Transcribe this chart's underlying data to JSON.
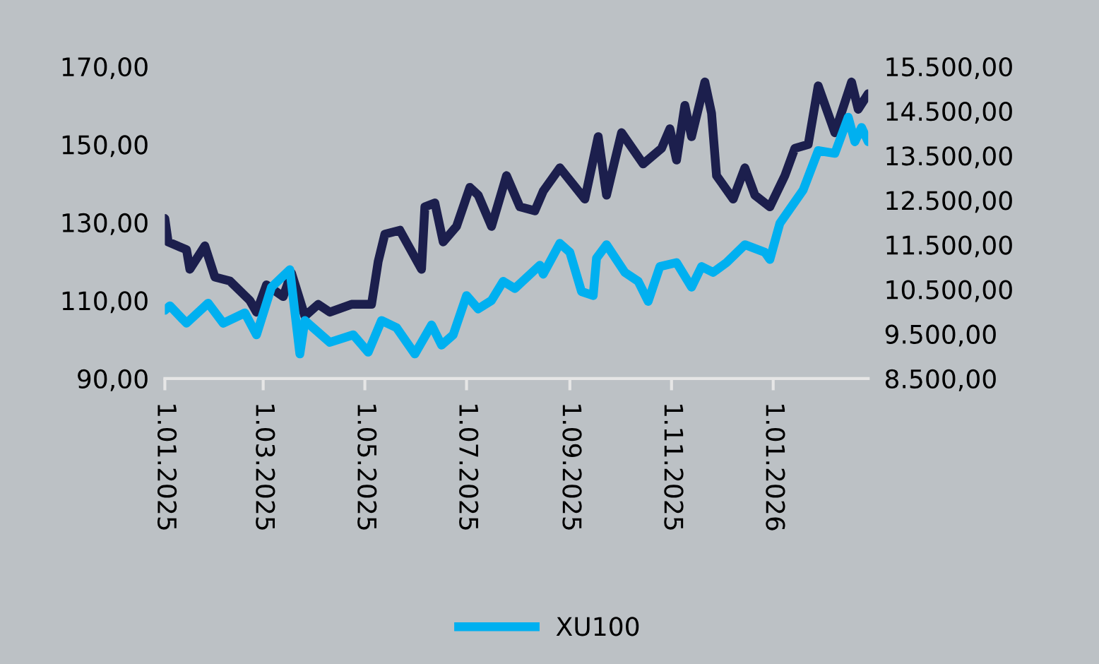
{
  "chart_data": {
    "type": "line",
    "legend": "bottom",
    "grid": false,
    "line_style": "solid",
    "marker": "none",
    "xlim": [
      "2025-01-01",
      "2026-02-27"
    ],
    "xticks": [
      {
        "value": "2025-01-01",
        "label": "1.01.2025"
      },
      {
        "value": "2025-03-01",
        "label": "1.03.2025"
      },
      {
        "value": "2025-05-01",
        "label": "1.05.2025"
      },
      {
        "value": "2025-07-01",
        "label": "1.07.2025"
      },
      {
        "value": "2025-09-01",
        "label": "1.09.2025"
      },
      {
        "value": "2025-11-01",
        "label": "1.11.2025"
      },
      {
        "value": "2026-01-01",
        "label": "1.01.2026"
      }
    ],
    "ylim": [
      90,
      170
    ],
    "yticks": [
      {
        "value": 90,
        "label": "90,00"
      },
      {
        "value": 110,
        "label": "110,00"
      },
      {
        "value": 130,
        "label": "130,00"
      },
      {
        "value": 150,
        "label": "150,00"
      },
      {
        "value": 170,
        "label": "170,00"
      }
    ],
    "y2lim": [
      8500,
      15500
    ],
    "y2ticks": [
      {
        "value": 8500,
        "label": "8.500,00"
      },
      {
        "value": 9500,
        "label": "9.500,00"
      },
      {
        "value": 10500,
        "label": "10.500,00"
      },
      {
        "value": 11500,
        "label": "11.500,00"
      },
      {
        "value": 12500,
        "label": "12.500,00"
      },
      {
        "value": 13500,
        "label": "13.500,00"
      },
      {
        "value": 14500,
        "label": "14.500,00"
      },
      {
        "value": 15500,
        "label": "15.500,00"
      }
    ],
    "series": [
      {
        "color": "#1c1f4d",
        "axis": "y",
        "x": [
          "2025-01-01",
          "2025-01-03",
          "2025-01-14",
          "2025-01-16",
          "2025-01-25",
          "2025-01-31",
          "2025-02-09",
          "2025-02-21",
          "2025-02-25",
          "2025-03-03",
          "2025-03-13",
          "2025-03-18",
          "2025-03-26",
          "2025-04-03",
          "2025-04-10",
          "2025-04-23",
          "2025-05-05",
          "2025-05-09",
          "2025-05-13",
          "2025-05-22",
          "2025-06-04",
          "2025-06-06",
          "2025-06-12",
          "2025-06-17",
          "2025-06-25",
          "2025-07-03",
          "2025-07-08",
          "2025-07-16",
          "2025-07-25",
          "2025-08-02",
          "2025-08-11",
          "2025-08-16",
          "2025-08-26",
          "2025-09-10",
          "2025-09-18",
          "2025-09-23",
          "2025-10-02",
          "2025-10-15",
          "2025-10-26",
          "2025-10-31",
          "2025-11-04",
          "2025-11-09",
          "2025-11-13",
          "2025-11-21",
          "2025-11-25",
          "2025-11-28",
          "2025-12-08",
          "2025-12-15",
          "2025-12-21",
          "2025-12-30",
          "2026-01-08",
          "2026-01-14",
          "2026-01-22",
          "2026-01-28",
          "2026-02-07",
          "2026-02-17",
          "2026-02-21",
          "2026-02-27"
        ],
        "values": [
          131,
          125,
          123,
          118,
          124,
          116,
          115,
          110,
          107,
          114,
          111,
          117,
          106,
          109,
          107,
          109,
          109,
          120,
          127,
          128,
          118,
          134,
          135,
          125,
          129,
          139,
          137,
          129,
          142,
          134,
          133,
          138,
          144,
          136,
          152,
          137,
          153,
          145,
          149,
          154,
          146,
          160,
          152,
          166,
          158,
          142,
          136,
          144,
          137,
          134,
          142,
          149,
          150,
          165,
          153,
          166,
          159,
          163
        ]
      },
      {
        "name": "XU100",
        "color": "#00b0f0",
        "axis": "y2",
        "x": [
          "2025-01-01",
          "2025-01-04",
          "2025-01-14",
          "2025-01-27",
          "2025-02-05",
          "2025-02-18",
          "2025-02-25",
          "2025-03-06",
          "2025-03-17",
          "2025-03-23",
          "2025-03-26",
          "2025-04-10",
          "2025-04-24",
          "2025-05-03",
          "2025-05-11",
          "2025-05-20",
          "2025-05-31",
          "2025-06-10",
          "2025-06-16",
          "2025-06-23",
          "2025-07-01",
          "2025-07-08",
          "2025-07-16",
          "2025-07-23",
          "2025-07-30",
          "2025-08-14",
          "2025-08-16",
          "2025-08-26",
          "2025-09-01",
          "2025-09-08",
          "2025-09-15",
          "2025-09-17",
          "2025-09-23",
          "2025-10-04",
          "2025-10-12",
          "2025-10-18",
          "2025-10-25",
          "2025-11-04",
          "2025-11-13",
          "2025-11-19",
          "2025-11-26",
          "2025-12-04",
          "2025-12-15",
          "2025-12-27",
          "2025-12-30",
          "2026-01-05",
          "2026-01-19",
          "2026-01-28",
          "2026-02-07",
          "2026-02-15",
          "2026-02-19",
          "2026-02-23",
          "2026-02-27"
        ],
        "values": [
          10030,
          10130,
          9740,
          10190,
          9740,
          9970,
          9480,
          10550,
          10940,
          9050,
          9800,
          9310,
          9480,
          9090,
          9800,
          9640,
          9050,
          9700,
          9250,
          9480,
          10360,
          10060,
          10250,
          10680,
          10520,
          11040,
          10840,
          11530,
          11330,
          10450,
          10360,
          11200,
          11500,
          10880,
          10680,
          10230,
          11010,
          11100,
          10550,
          11010,
          10880,
          11100,
          11500,
          11330,
          11170,
          11980,
          12730,
          13610,
          13550,
          14360,
          13810,
          14130,
          13810
        ]
      }
    ]
  }
}
